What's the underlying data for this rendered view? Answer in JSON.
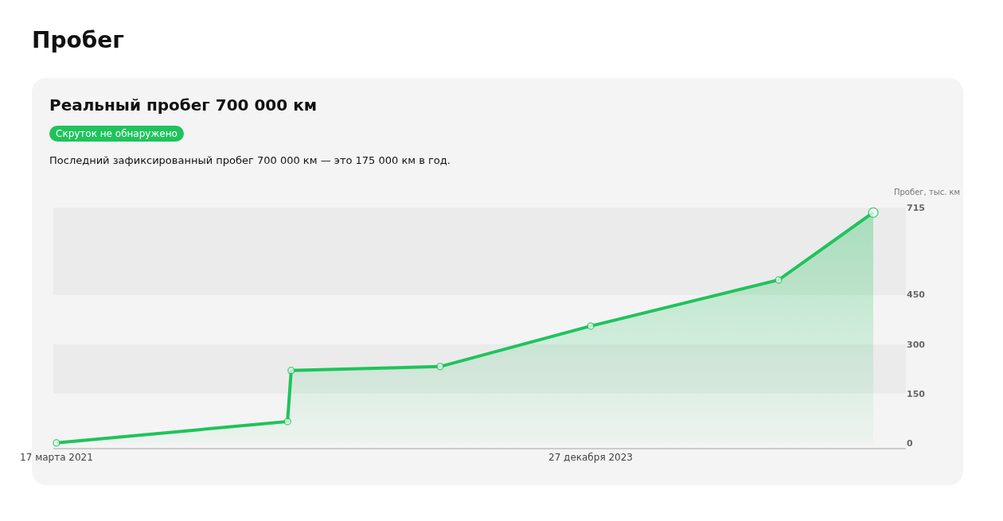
{
  "chart_data": {
    "type": "area",
    "title": "Пробег",
    "subtitle": "Реальный пробег 700 000 км",
    "annotations": [
      "Скруток не обнаружено",
      "Последний зафиксированный пробег 700 000 км — это 175 000 км в год."
    ],
    "ylabel": "Пробег, тыс. км",
    "x": [
      "2021-03-17",
      "2022-05-30",
      "2022-06-06",
      "2023-03-16",
      "2023-12-27",
      "2024-12-18",
      "2025-06-16"
    ],
    "series": [
      {
        "color": "#1fc35c",
        "values": [
          0,
          65,
          220,
          232,
          355,
          495,
          700
        ]
      }
    ],
    "xlim": [
      "2021-03-11",
      "2025-08-17"
    ],
    "xticks": [
      {
        "value": "2021-03-17",
        "label": "17 марта 2021"
      },
      {
        "value": "2023-12-27",
        "label": "27 декабря 2023"
      }
    ],
    "ylim": [
      -15,
      715
    ],
    "yticks": [
      0,
      150,
      300,
      450,
      715
    ],
    "bands": [
      {
        "axis": "y",
        "from": 150,
        "to": 300,
        "color": "#ebebeb"
      },
      {
        "axis": "y",
        "from": 450,
        "to": 715,
        "color": "#ebebeb"
      }
    ],
    "marker": "circle",
    "line_style": "solid"
  }
}
